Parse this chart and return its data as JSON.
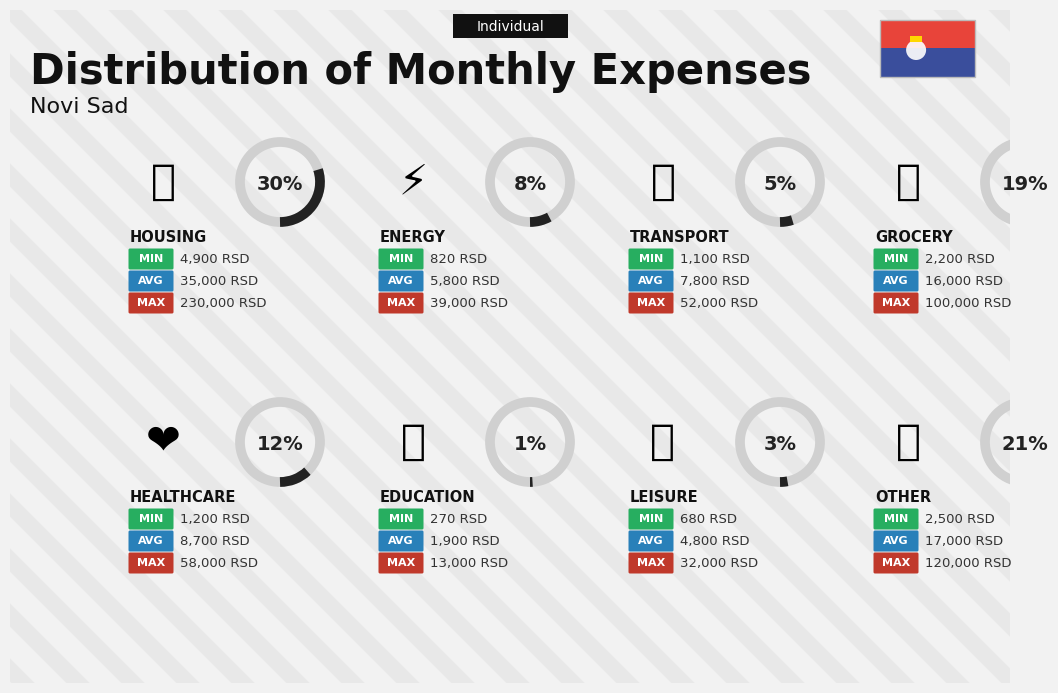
{
  "title": "Distribution of Monthly Expenses",
  "subtitle": "Individual",
  "city": "Novi Sad",
  "bg_color": "#f2f2f2",
  "categories": [
    {
      "name": "HOUSING",
      "pct": 30,
      "min": "4,900 RSD",
      "avg": "35,000 RSD",
      "max": "230,000 RSD",
      "icon": "🏢",
      "row": 0,
      "col": 0
    },
    {
      "name": "ENERGY",
      "pct": 8,
      "min": "820 RSD",
      "avg": "5,800 RSD",
      "max": "39,000 RSD",
      "icon": "⚡",
      "row": 0,
      "col": 1
    },
    {
      "name": "TRANSPORT",
      "pct": 5,
      "min": "1,100 RSD",
      "avg": "7,800 RSD",
      "max": "52,000 RSD",
      "icon": "🚌",
      "row": 0,
      "col": 2
    },
    {
      "name": "GROCERY",
      "pct": 19,
      "min": "2,200 RSD",
      "avg": "16,000 RSD",
      "max": "100,000 RSD",
      "icon": "🛒",
      "row": 0,
      "col": 3
    },
    {
      "name": "HEALTHCARE",
      "pct": 12,
      "min": "1,200 RSD",
      "avg": "8,700 RSD",
      "max": "58,000 RSD",
      "icon": "❤️",
      "row": 1,
      "col": 0
    },
    {
      "name": "EDUCATION",
      "pct": 1,
      "min": "270 RSD",
      "avg": "1,900 RSD",
      "max": "13,000 RSD",
      "icon": "🎓",
      "row": 1,
      "col": 1
    },
    {
      "name": "LEISURE",
      "pct": 3,
      "min": "680 RSD",
      "avg": "4,800 RSD",
      "max": "32,000 RSD",
      "icon": "🛍️",
      "row": 1,
      "col": 2
    },
    {
      "name": "OTHER",
      "pct": 21,
      "min": "2,500 RSD",
      "avg": "17,000 RSD",
      "max": "120,000 RSD",
      "icon": "👜",
      "row": 1,
      "col": 3
    }
  ],
  "min_color": "#27ae60",
  "avg_color": "#2980b9",
  "max_color": "#c0392b",
  "arc_color": "#222222",
  "arc_bg_color": "#d0d0d0",
  "title_color": "#111111",
  "subtitle_bg": "#111111",
  "subtitle_color": "#ffffff",
  "category_name_color": "#111111",
  "value_text_color": "#333333",
  "stripe_color": "#e0e0e0",
  "flag_red": "#E8443A",
  "flag_blue": "#3A4E9C",
  "flag_white": "#FFFFFF"
}
